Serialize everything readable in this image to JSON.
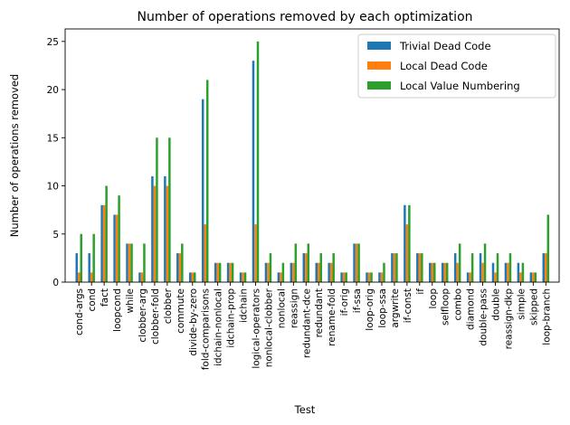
{
  "chart_data": {
    "type": "bar",
    "title": "Number of operations removed by each optimization",
    "xlabel": "Test",
    "ylabel": "Number of operations removed",
    "ylim": [
      0,
      26.3
    ],
    "yticks": [
      0,
      5,
      10,
      15,
      20,
      25
    ],
    "legend_position": "top-right",
    "categories": [
      "cond-args",
      "cond",
      "fact",
      "loopcond",
      "while",
      "clobber-arg",
      "clobber-fold",
      "clobber",
      "commute",
      "divide-by-zero",
      "fold-comparisons",
      "idchain-nonlocal",
      "idchain-prop",
      "idchain",
      "logical-operators",
      "nonlocal-clobber",
      "nonlocal",
      "reassign",
      "redundant-dce",
      "redundant",
      "rename-fold",
      "if-orig",
      "if-ssa",
      "loop-orig",
      "loop-ssa",
      "argwrite",
      "if-const",
      "if",
      "loop",
      "selfloop",
      "combo",
      "diamond",
      "double-pass",
      "double",
      "reassign-dkp",
      "simple",
      "skipped",
      "loop-branch"
    ],
    "series": [
      {
        "name": "Trivial Dead Code",
        "color": "#1f77b4",
        "values": [
          3,
          3,
          8,
          7,
          4,
          1,
          11,
          11,
          3,
          1,
          19,
          2,
          2,
          1,
          23,
          2,
          1,
          2,
          3,
          2,
          2,
          1,
          4,
          1,
          1,
          3,
          8,
          3,
          2,
          2,
          3,
          1,
          3,
          2,
          2,
          2,
          1,
          3
        ]
      },
      {
        "name": "Local Dead Code",
        "color": "#ff7f0e",
        "values": [
          1,
          1,
          8,
          7,
          4,
          1,
          10,
          10,
          3,
          1,
          6,
          2,
          2,
          1,
          6,
          2,
          1,
          2,
          3,
          2,
          2,
          1,
          4,
          1,
          1,
          3,
          6,
          3,
          2,
          2,
          2,
          1,
          2,
          1,
          2,
          1,
          1,
          3
        ]
      },
      {
        "name": "Local Value Numbering",
        "color": "#2ca02c",
        "values": [
          5,
          5,
          10,
          9,
          4,
          4,
          15,
          15,
          4,
          1,
          21,
          2,
          2,
          1,
          25,
          3,
          2,
          4,
          4,
          3,
          3,
          1,
          4,
          1,
          2,
          3,
          8,
          3,
          2,
          2,
          4,
          3,
          4,
          3,
          3,
          2,
          1,
          7
        ]
      }
    ]
  }
}
